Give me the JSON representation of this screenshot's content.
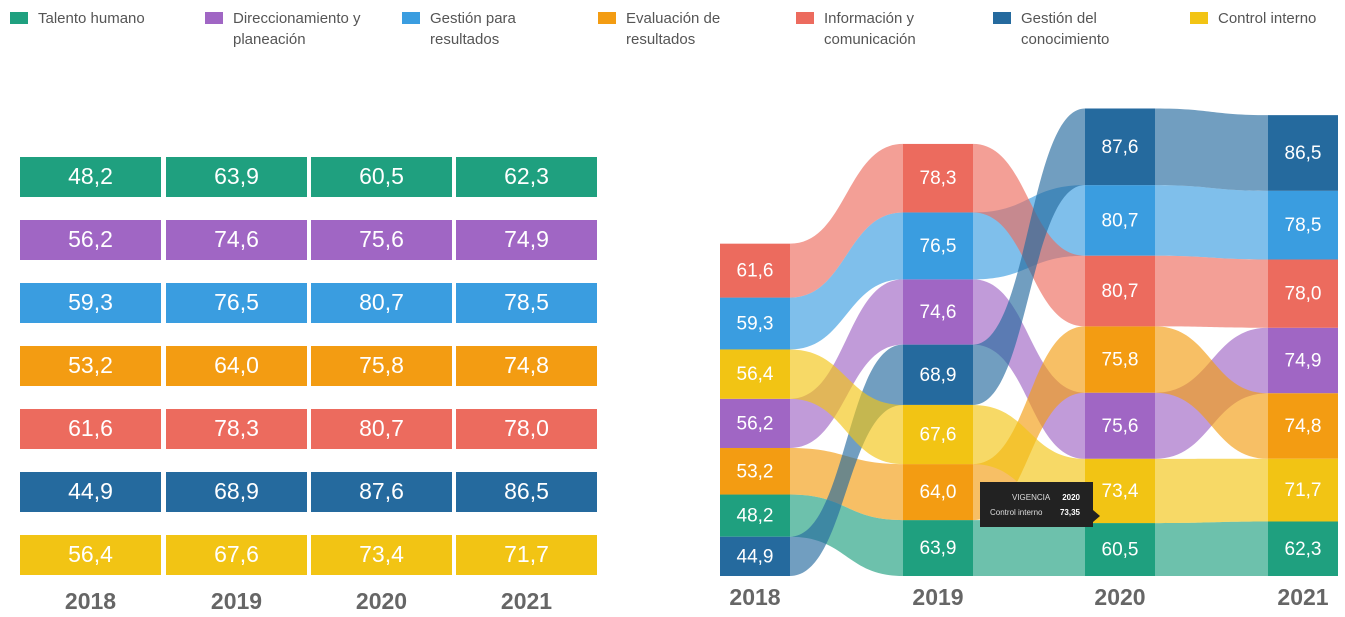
{
  "chart_data": {
    "type": "bump",
    "categories": [
      "2018",
      "2019",
      "2020",
      "2021"
    ],
    "series": [
      {
        "name": "Talento humano",
        "color": "#1fa07f",
        "values": [
          48.2,
          63.9,
          60.5,
          62.3
        ],
        "value_labels": [
          "48,2",
          "63,9",
          "60,5",
          "62,3"
        ]
      },
      {
        "name": "Direccionamiento y planeación",
        "color": "#a066c4",
        "values": [
          56.2,
          74.6,
          75.6,
          74.9
        ],
        "value_labels": [
          "56,2",
          "74,6",
          "75,6",
          "74,9"
        ]
      },
      {
        "name": "Gestión para resultados",
        "color": "#3a9de0",
        "values": [
          59.3,
          76.5,
          80.7,
          78.5
        ],
        "value_labels": [
          "59,3",
          "76,5",
          "80,7",
          "78,5"
        ]
      },
      {
        "name": "Evaluación de resultados",
        "color": "#f39c12",
        "values": [
          53.2,
          64.0,
          75.8,
          74.8
        ],
        "value_labels": [
          "53,2",
          "64,0",
          "75,8",
          "74,8"
        ]
      },
      {
        "name": "Información y comunicación",
        "color": "#ec6b5e",
        "values": [
          61.6,
          78.3,
          80.7,
          78.0
        ],
        "value_labels": [
          "61,6",
          "78,3",
          "80,7",
          "78,0"
        ]
      },
      {
        "name": "Gestión del conocimiento",
        "color": "#256a9e",
        "values": [
          44.9,
          68.9,
          87.6,
          86.5
        ],
        "value_labels": [
          "44,9",
          "68,9",
          "87,6",
          "86,5"
        ]
      },
      {
        "name": "Control interno",
        "color": "#f2c414",
        "values": [
          56.4,
          67.6,
          73.4,
          71.7
        ],
        "value_labels": [
          "56,4",
          "67,6",
          "73,4",
          "71,7"
        ]
      }
    ],
    "tooltip": {
      "label": "VIGENCIA",
      "category": "2020",
      "series": "Control interno",
      "value": 73.35,
      "value_label": "73,35"
    }
  }
}
